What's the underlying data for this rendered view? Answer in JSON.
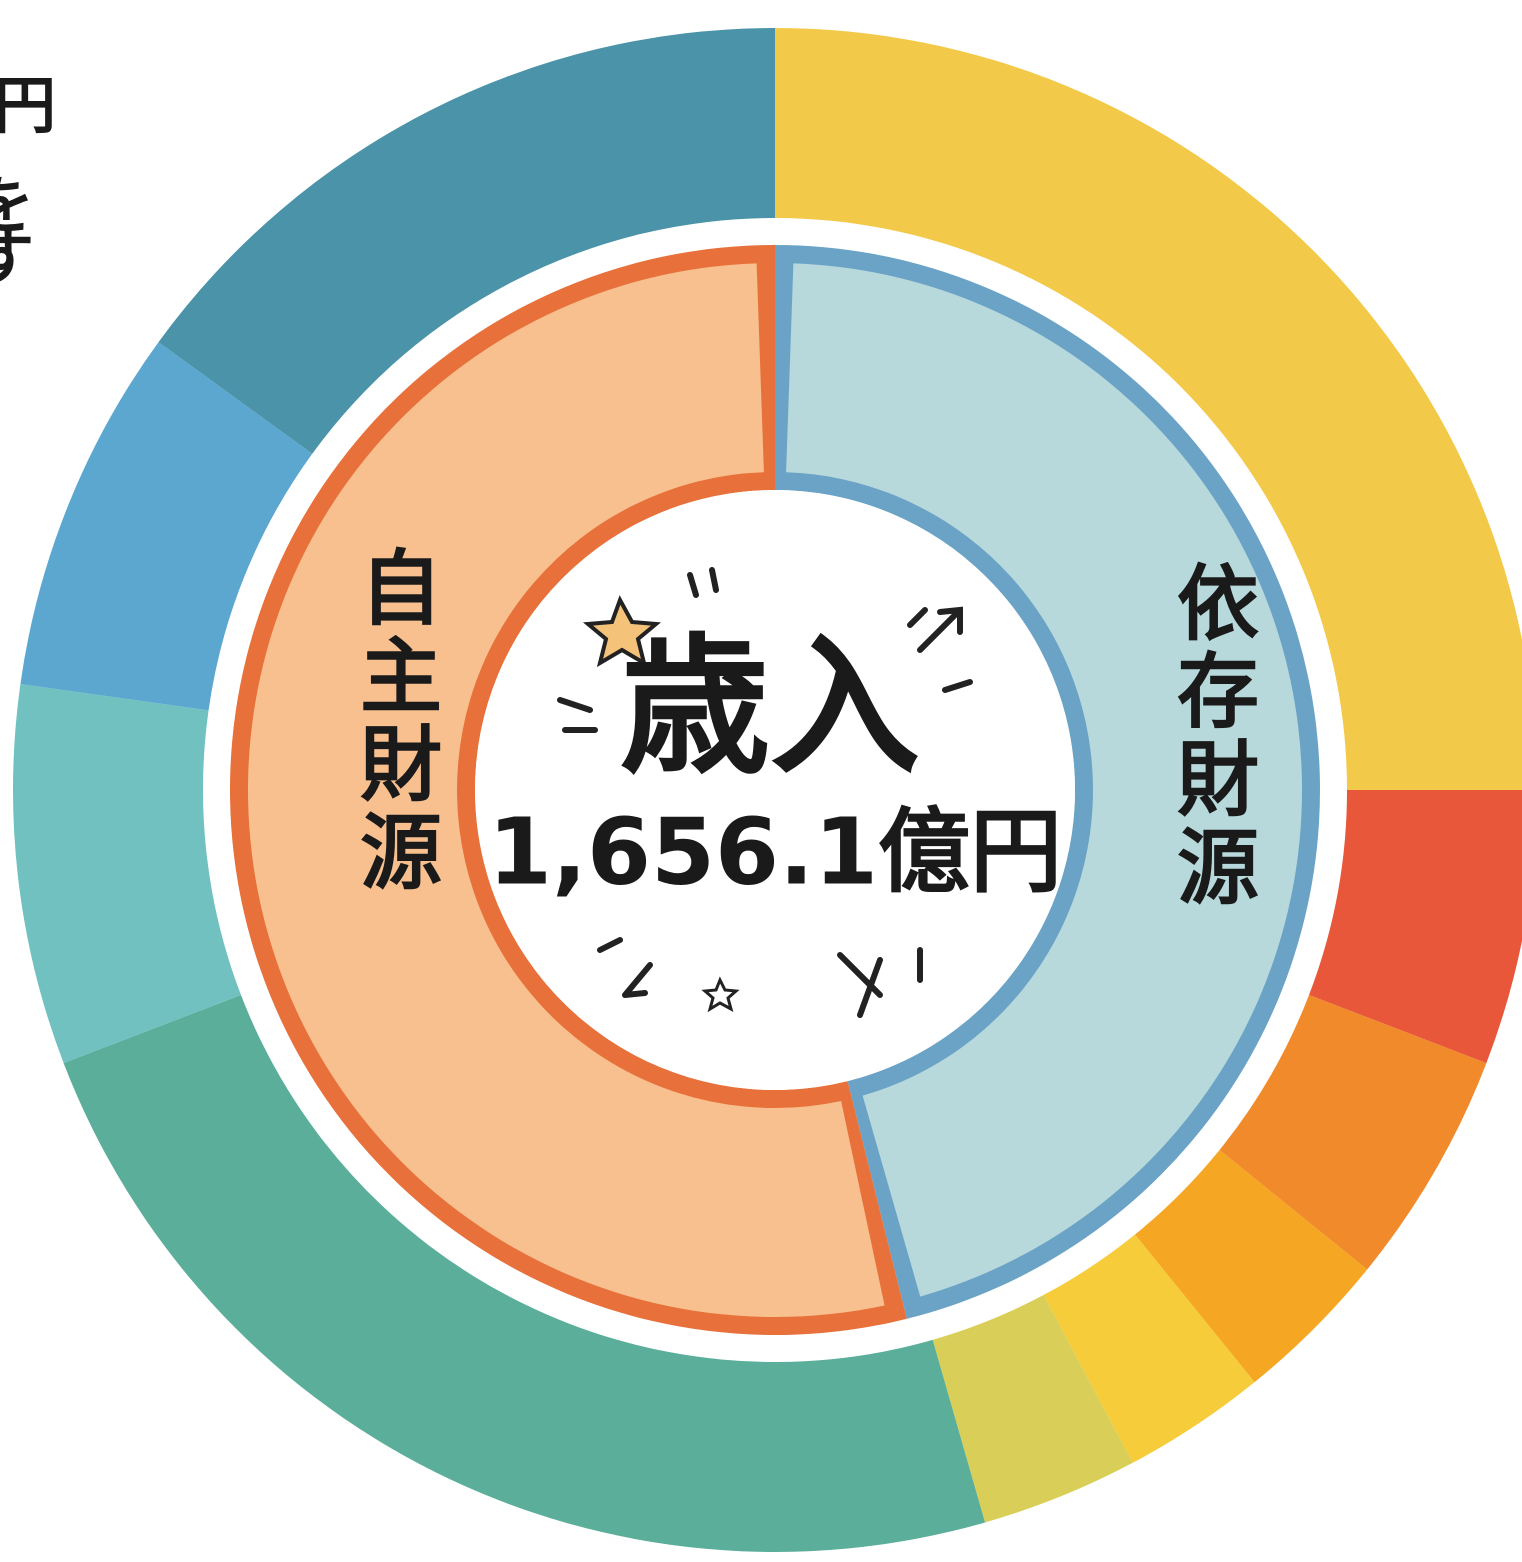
{
  "center": {
    "title": "歳入",
    "total": "1,656.1億円"
  },
  "inner_ring": {
    "left_label": "自主財源",
    "right_label": "依存財源"
  },
  "edge_fragments": [
    "円",
    "を",
    "す"
  ]
}
